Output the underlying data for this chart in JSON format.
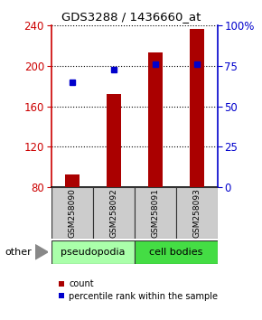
{
  "title": "GDS3288 / 1436660_at",
  "samples": [
    "GSM258090",
    "GSM258092",
    "GSM258091",
    "GSM258093"
  ],
  "counts": [
    93,
    172,
    213,
    237
  ],
  "percentile_ranks": [
    65,
    73,
    76,
    76
  ],
  "ymin": 80,
  "ymax": 240,
  "yticks": [
    80,
    120,
    160,
    200,
    240
  ],
  "y2min": 0,
  "y2max": 100,
  "y2ticks": [
    0,
    25,
    50,
    75,
    100
  ],
  "bar_color": "#aa0000",
  "dot_color": "#0000cc",
  "bar_width": 0.35,
  "groups": [
    {
      "label": "pseudopodia",
      "color": "#aaffaa"
    },
    {
      "label": "cell bodies",
      "color": "#44dd44"
    }
  ],
  "other_label": "other",
  "legend_count_label": "count",
  "legend_percentile_label": "percentile rank within the sample",
  "bg_color": "#ffffff",
  "title_color": "#000000",
  "left_axis_color": "#cc0000",
  "right_axis_color": "#0000cc",
  "label_box_color": "#cccccc",
  "label_box_edge": "#333333"
}
